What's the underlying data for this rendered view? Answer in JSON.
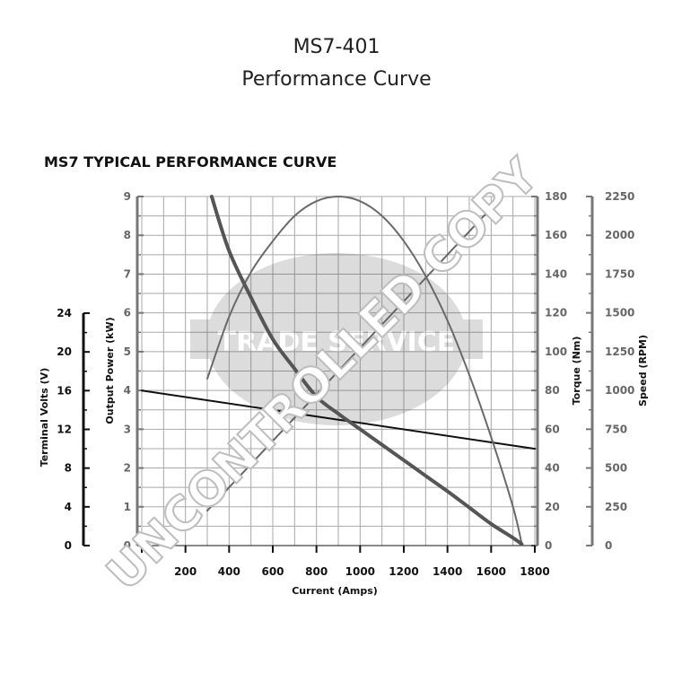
{
  "page": {
    "title_line1": "MS7-401",
    "title_line2": "Performance Curve",
    "watermark_main": "UNCONTROLLED COPY",
    "watermark_logo": "TRADE SERVICE"
  },
  "chart_data": {
    "type": "line",
    "title": "MS7 TYPICAL PERFORMANCE CURVE",
    "xlabel": "Current (Amps)",
    "x_range": [
      0,
      1800
    ],
    "x_ticks": [
      0,
      200,
      400,
      600,
      800,
      1000,
      1200,
      1400,
      1600,
      1800
    ],
    "grid": true,
    "axes": {
      "terminal_volts": {
        "label": "Terminal Volts (V)",
        "side": "left-outer",
        "range": [
          0,
          24
        ],
        "ticks": [
          0,
          4,
          8,
          12,
          16,
          20,
          24
        ]
      },
      "output_power": {
        "label": "Output Power (kW)",
        "side": "left-inner",
        "range": [
          0,
          9
        ],
        "ticks": [
          0,
          1,
          2,
          3,
          4,
          5,
          6,
          7,
          8,
          9
        ]
      },
      "torque": {
        "label": "Torque (Nm)",
        "side": "right-inner",
        "range": [
          0,
          180
        ],
        "ticks": [
          0,
          20,
          40,
          60,
          80,
          100,
          120,
          140,
          160,
          180
        ]
      },
      "speed": {
        "label": "Speed (RPM)",
        "side": "right-outer",
        "range": [
          0,
          2250
        ],
        "ticks": [
          0,
          250,
          500,
          750,
          1000,
          1250,
          1500,
          1750,
          2000,
          2250
        ]
      }
    },
    "series": [
      {
        "axis": "terminal_volts",
        "color": "#111111",
        "width": 2,
        "points": [
          [
            0,
            16.0
          ],
          [
            1800,
            10.0
          ]
        ]
      },
      {
        "axis": "output_power",
        "color": "#6a6a6a",
        "width": 2,
        "points": [
          [
            300,
            4.3
          ],
          [
            400,
            5.9
          ],
          [
            500,
            7.05
          ],
          [
            600,
            7.85
          ],
          [
            700,
            8.5
          ],
          [
            800,
            8.88
          ],
          [
            900,
            9.0
          ],
          [
            1000,
            8.88
          ],
          [
            1100,
            8.5
          ],
          [
            1200,
            7.85
          ],
          [
            1300,
            6.95
          ],
          [
            1400,
            5.8
          ],
          [
            1500,
            4.4
          ],
          [
            1600,
            2.8
          ],
          [
            1700,
            1.0
          ],
          [
            1740,
            0.05
          ]
        ]
      },
      {
        "axis": "torque",
        "color": "#666666",
        "width": 2,
        "points": [
          [
            300,
            18.0
          ],
          [
            1650,
            180.0
          ]
        ]
      },
      {
        "axis": "speed",
        "color": "#555555",
        "width": 4,
        "points": [
          [
            320,
            2250
          ],
          [
            400,
            1900
          ],
          [
            500,
            1600
          ],
          [
            600,
            1330
          ],
          [
            700,
            1140
          ],
          [
            800,
            960
          ],
          [
            900,
            850
          ],
          [
            1000,
            750
          ],
          [
            1100,
            650
          ],
          [
            1200,
            550
          ],
          [
            1300,
            450
          ],
          [
            1400,
            350
          ],
          [
            1500,
            245
          ],
          [
            1600,
            140
          ],
          [
            1700,
            50
          ],
          [
            1740,
            10
          ]
        ]
      }
    ]
  }
}
